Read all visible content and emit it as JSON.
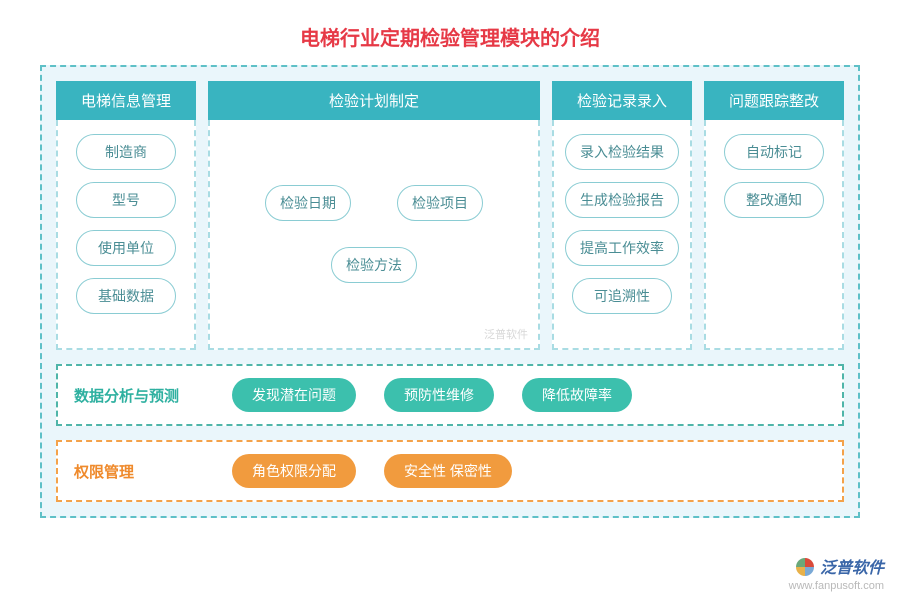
{
  "title": "电梯行业定期检验管理模块的介绍",
  "colors": {
    "title": "#e63946",
    "header_bg": "#39b4c0",
    "header_text": "#ffffff",
    "outer_border": "#5ec0c7",
    "outer_bg": "#eaf6fb",
    "pill_border": "#8accd3",
    "pill_text": "#4a8d94",
    "teal_row_border": "#4fb5a9",
    "teal_row_label": "#2eb0a0",
    "teal_badge_bg": "#3cc0ad",
    "orange_row_border": "#f4a24a",
    "orange_row_label": "#ef8a2c",
    "orange_badge_bg": "#f19b3e",
    "badge_text": "#ffffff"
  },
  "columns": [
    {
      "header": "电梯信息管理",
      "items": [
        "制造商",
        "型号",
        "使用单位",
        "基础数据"
      ]
    },
    {
      "header": "检验计划制定",
      "items": [
        "检验日期",
        "检验项目",
        "检验方法"
      ]
    },
    {
      "header": "检验记录录入",
      "items": [
        "录入检验结果",
        "生成检验报告",
        "提高工作效率",
        "可追溯性"
      ]
    },
    {
      "header": "问题跟踪整改",
      "items": [
        "自动标记",
        "整改通知"
      ]
    }
  ],
  "rows": [
    {
      "style": "teal",
      "label": "数据分析与预测",
      "badges": [
        "发现潜在问题",
        "预防性维修",
        "降低故障率"
      ]
    },
    {
      "style": "orange",
      "label": "权限管理",
      "badges": [
        "角色权限分配",
        "安全性 保密性"
      ]
    }
  ],
  "watermark": "泛普软件",
  "footer": {
    "brand": "泛普软件",
    "url": "www.fanpusoft.com"
  }
}
